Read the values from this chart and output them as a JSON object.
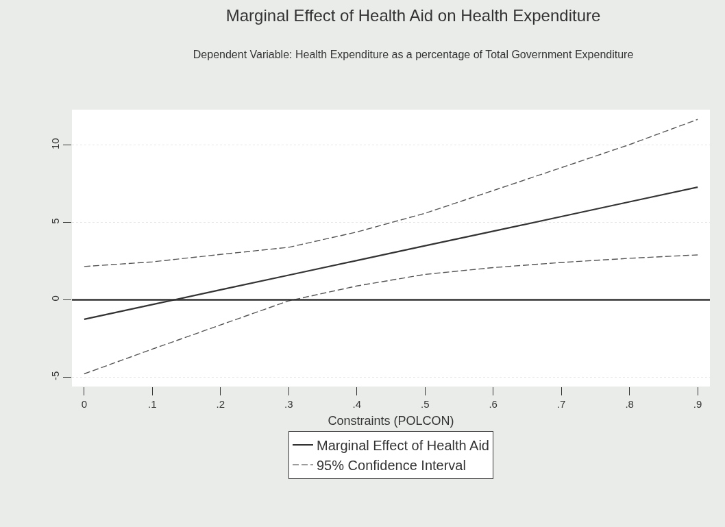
{
  "chart_data": {
    "type": "line",
    "title": "Marginal Effect of Health Aid on Health Expenditure",
    "subtitle": "Dependent Variable: Health Expenditure as a percentage of Total Government Expenditure",
    "xlabel": "Constraints (POLCON)",
    "x": [
      0,
      0.1,
      0.2,
      0.3,
      0.4,
      0.5,
      0.6,
      0.7,
      0.8,
      0.9
    ],
    "series": [
      {
        "name": "Marginal Effect of Health Aid",
        "color": "#333333",
        "line_style": "solid",
        "values": [
          -1.25,
          -0.3,
          0.65,
          1.6,
          2.55,
          3.5,
          4.44,
          5.39,
          6.34,
          7.29
        ]
      },
      {
        "name": "95% Confidence Interval",
        "color": "#555555",
        "line_style": "dashed",
        "values": [
          2.16,
          2.46,
          2.94,
          3.4,
          4.39,
          5.6,
          7.07,
          8.55,
          10.04,
          11.67
        ]
      },
      {
        "color": "#555555",
        "line_style": "dashed",
        "values": [
          -4.78,
          -3.18,
          -1.62,
          -0.06,
          0.9,
          1.65,
          2.09,
          2.42,
          2.69,
          2.91
        ]
      }
    ],
    "ref_lines": [
      {
        "axis": "y",
        "value": 0,
        "color": "#333333",
        "line_style": "solid"
      }
    ],
    "xlim": [
      -0.018,
      0.918
    ],
    "xticks": [
      {
        "value": 0,
        "label": "0"
      },
      {
        "value": 0.1,
        "label": ".1"
      },
      {
        "value": 0.2,
        "label": ".2"
      },
      {
        "value": 0.3,
        "label": ".3"
      },
      {
        "value": 0.4,
        "label": ".4"
      },
      {
        "value": 0.5,
        "label": ".5"
      },
      {
        "value": 0.6,
        "label": ".6"
      },
      {
        "value": 0.7,
        "label": ".7"
      },
      {
        "value": 0.8,
        "label": ".8"
      },
      {
        "value": 0.9,
        "label": ".9"
      }
    ],
    "ylim": [
      -5.6,
      12.3
    ],
    "yticks": [
      -5,
      0,
      5,
      10
    ],
    "grid": "y",
    "legend": "bottom",
    "marker": "none"
  }
}
